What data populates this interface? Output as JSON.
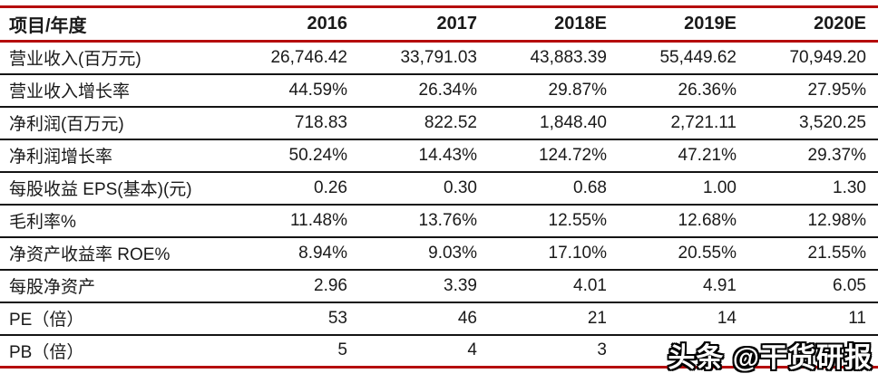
{
  "table": {
    "corner_label": "项目/年度",
    "years": [
      "2016",
      "2017",
      "2018E",
      "2019E",
      "2020E"
    ],
    "rows": [
      {
        "label": "营业收入(百万元)",
        "values": [
          "26,746.42",
          "33,791.03",
          "43,883.39",
          "55,449.62",
          "70,949.20"
        ]
      },
      {
        "label": "营业收入增长率",
        "values": [
          "44.59%",
          "26.34%",
          "29.87%",
          "26.36%",
          "27.95%"
        ]
      },
      {
        "label": "净利润(百万元)",
        "values": [
          "718.83",
          "822.52",
          "1,848.40",
          "2,721.11",
          "3,520.25"
        ]
      },
      {
        "label": "净利润增长率",
        "values": [
          "50.24%",
          "14.43%",
          "124.72%",
          "47.21%",
          "29.37%"
        ]
      },
      {
        "label": "每股收益 EPS(基本)(元)",
        "values": [
          "0.26",
          "0.30",
          "0.68",
          "1.00",
          "1.30"
        ]
      },
      {
        "label": "毛利率%",
        "values": [
          "11.48%",
          "13.76%",
          "12.55%",
          "12.68%",
          "12.98%"
        ]
      },
      {
        "label": "净资产收益率 ROE%",
        "values": [
          "8.94%",
          "9.03%",
          "17.10%",
          "20.55%",
          "21.55%"
        ]
      },
      {
        "label": "每股净资产",
        "values": [
          "2.96",
          "3.39",
          "4.01",
          "4.91",
          "6.05"
        ]
      },
      {
        "label": "PE（倍）",
        "values": [
          "53",
          "46",
          "21",
          "14",
          "11"
        ]
      },
      {
        "label": "PB（倍）",
        "values": [
          "5",
          "4",
          "3",
          "",
          ""
        ]
      }
    ]
  },
  "watermark": {
    "text": "头条 @干货研报"
  },
  "colors": {
    "accent_red": "#b50d0d",
    "separator_black": "#141414",
    "text": "#1a1a1a",
    "background": "#ffffff",
    "watermark_fill": "#ffffff",
    "watermark_outline": "#000000"
  }
}
